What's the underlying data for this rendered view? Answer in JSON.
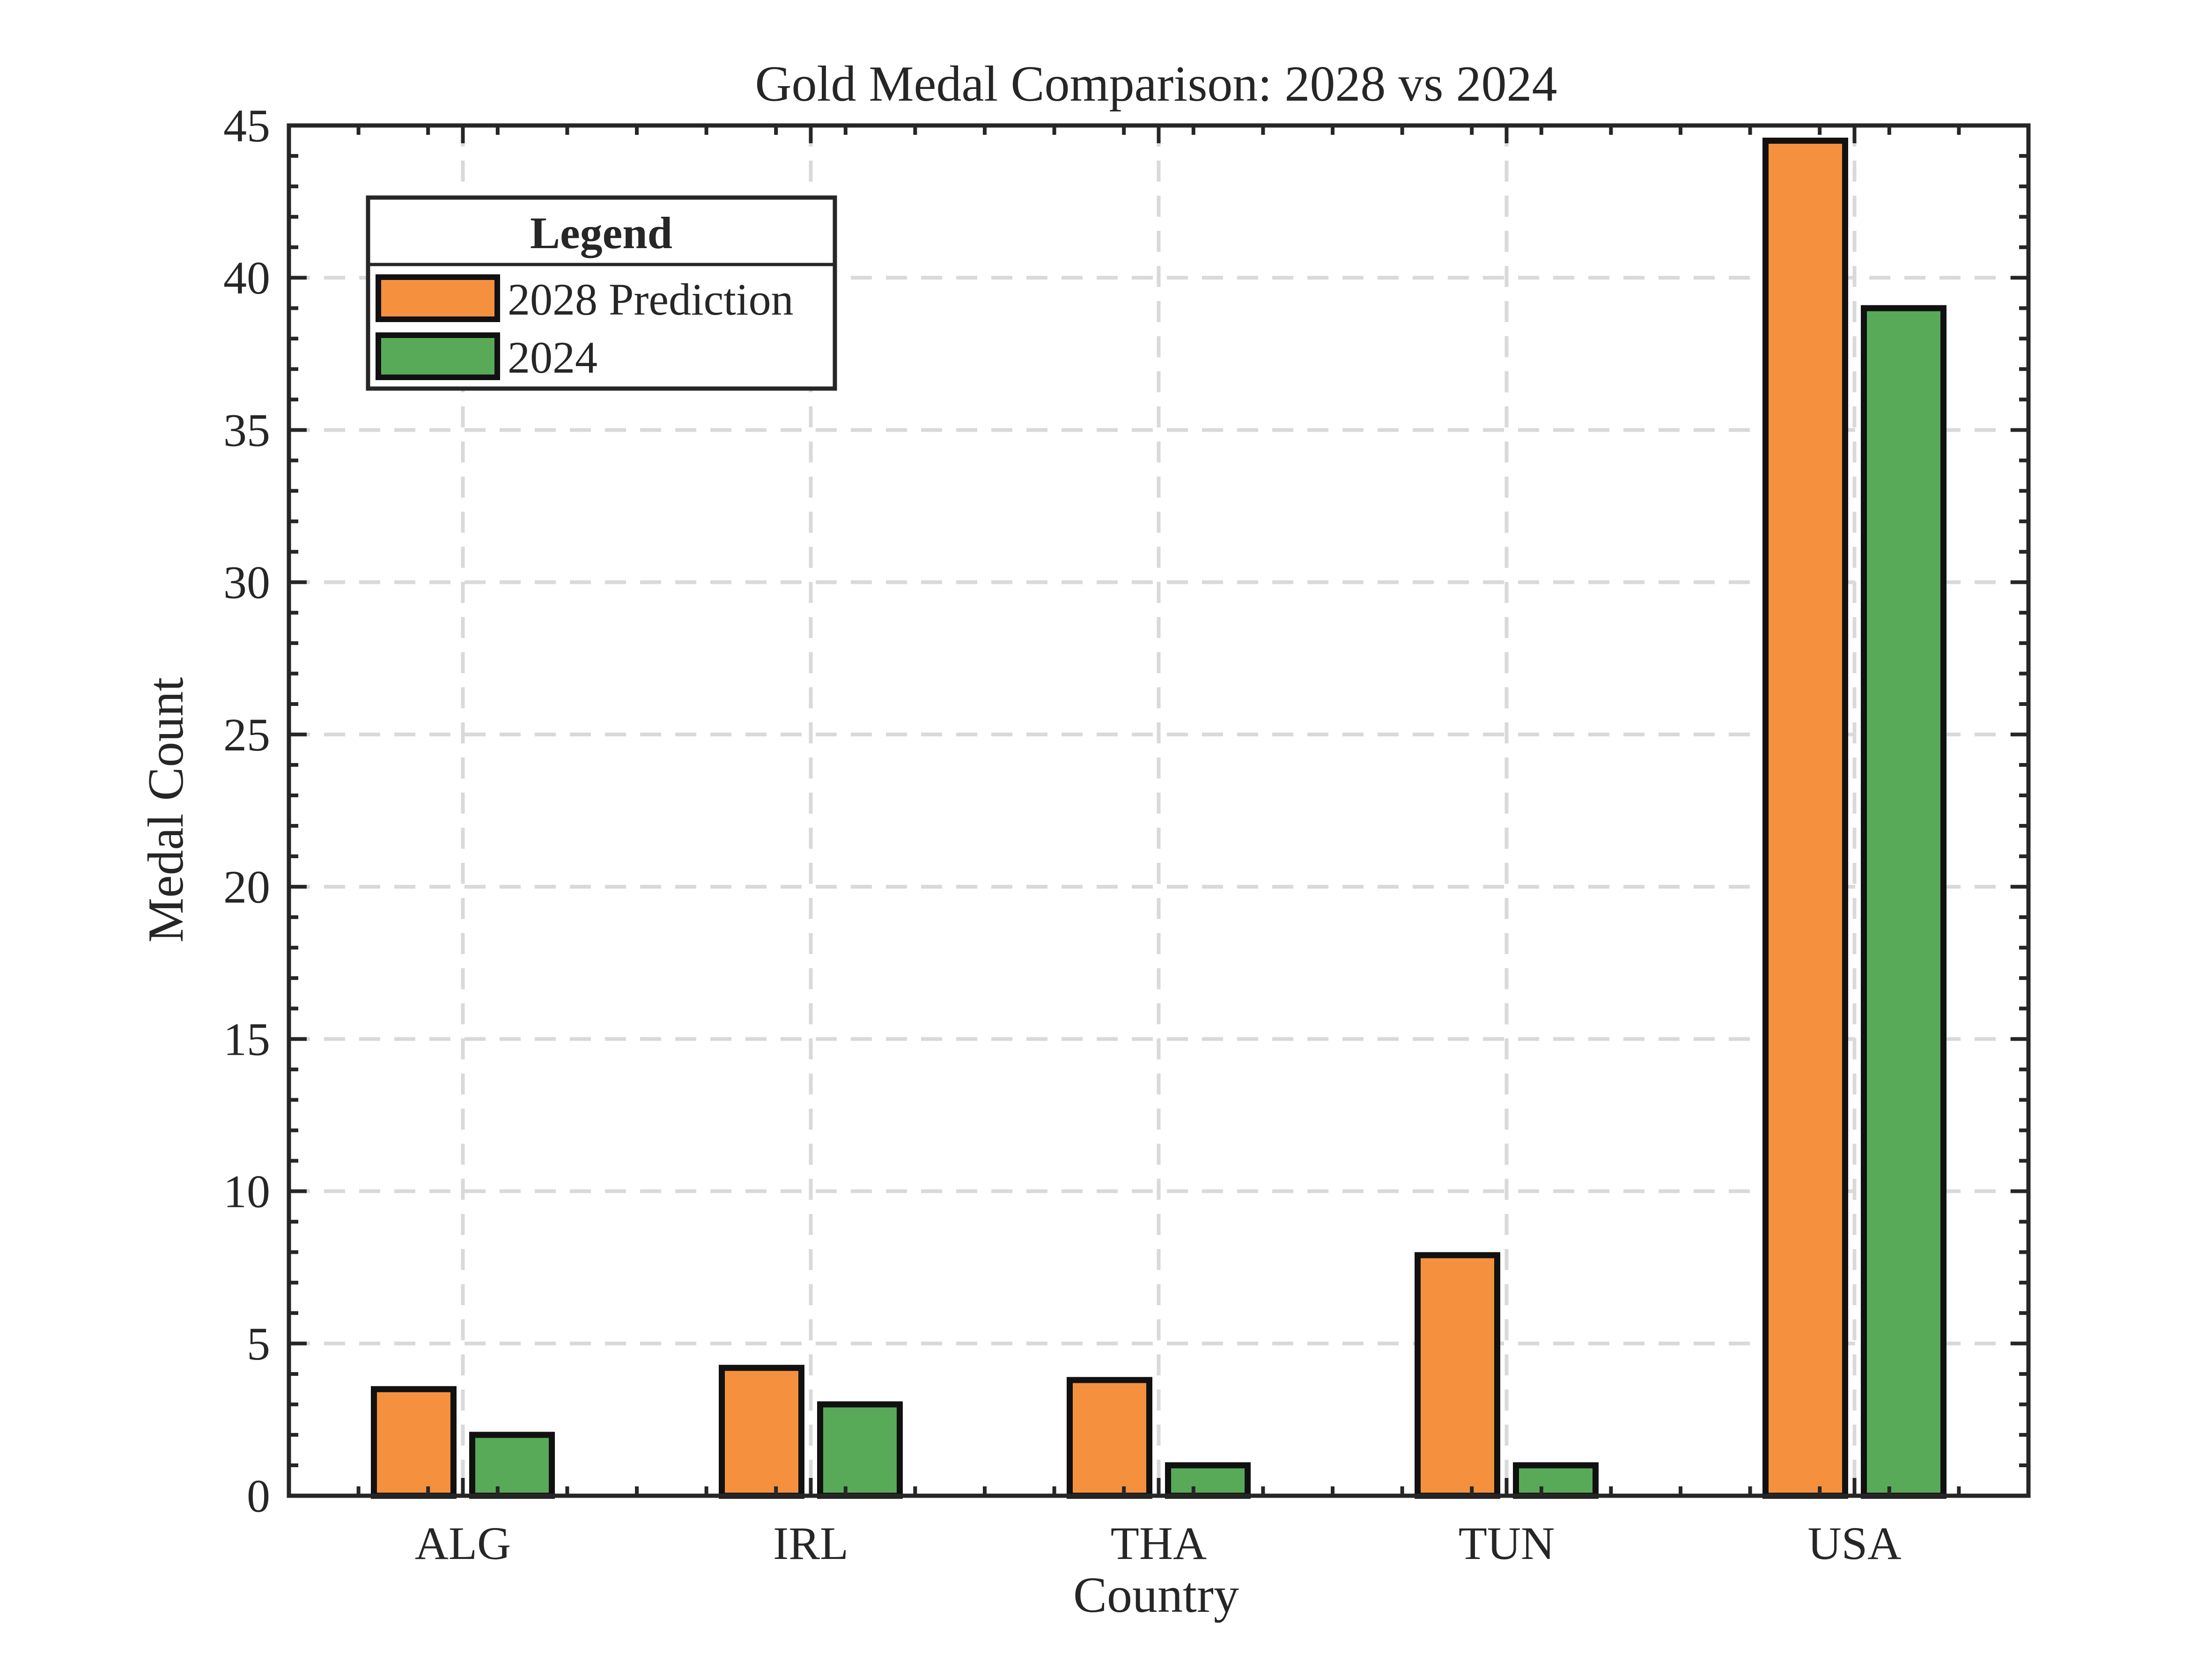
{
  "chart_data": {
    "type": "bar",
    "title": "Gold Medal Comparison: 2028 vs 2024",
    "xlabel": "Country",
    "ylabel": "Medal Count",
    "categories": [
      "ALG",
      "IRL",
      "THA",
      "TUN",
      "USA"
    ],
    "series": [
      {
        "name": "2028 Prediction",
        "color": "#F5913E",
        "values": [
          3.5,
          4.2,
          3.8,
          7.9,
          44.5
        ]
      },
      {
        "name": "2024",
        "color": "#58AA58",
        "values": [
          2,
          3,
          1,
          1,
          39
        ]
      }
    ],
    "ylim": [
      0,
      45
    ],
    "yticks": [
      0,
      5,
      10,
      15,
      20,
      25,
      30,
      35,
      40,
      45
    ],
    "grid": true,
    "legend": {
      "title": "Legend",
      "placement": "top-left"
    }
  }
}
